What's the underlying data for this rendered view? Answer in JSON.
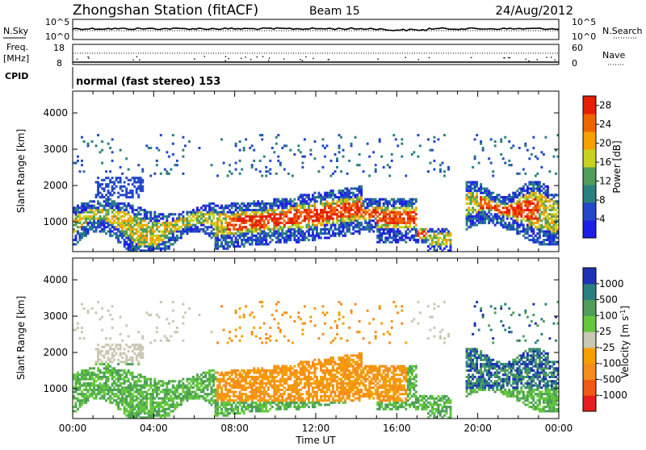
{
  "header": {
    "station": "Zhongshan Station (fitACF)",
    "beam": "Beam 15",
    "date": "24/Aug/2012"
  },
  "strips": {
    "nsky_label": "N.Sky",
    "nsky_ticks": [
      "10^5",
      "10^0"
    ],
    "nsearch_label": "N.Search",
    "freq_label_1": "Freq.",
    "freq_label_2": "[MHz]",
    "freq_ticks": [
      "18",
      "8"
    ],
    "nave_label": "Nave",
    "nave_ticks": [
      "60",
      "0"
    ],
    "cpid_label": "CPID",
    "cpid_text": "normal (fast stereo) 153"
  },
  "colors": {
    "power": [
      "#1e1ee6",
      "#2348c8",
      "#2a7f7f",
      "#4e9e5a",
      "#c8d21e",
      "#f5a000",
      "#f06400",
      "#e61e00"
    ],
    "velocity": [
      "#e61e1e",
      "#f05a14",
      "#f58c1e",
      "#f5a000",
      "#c8c8b4",
      "#64c83c",
      "#4e9e5a",
      "#2a7f7f",
      "#1e32b4"
    ]
  },
  "chart_data": [
    {
      "type": "heatmap",
      "quantity": "Power",
      "xlabel": "Time UT",
      "ylabel": "Slant Range [km]",
      "x_ticks": [
        "00:00",
        "04:00",
        "08:00",
        "12:00",
        "16:00",
        "20:00",
        "00:00"
      ],
      "xlim_hours": [
        0,
        24
      ],
      "ylim_km": [
        180,
        4600
      ],
      "y_ticks": [
        1000,
        2000,
        3000,
        4000
      ],
      "colorbar_label": "Power [dB]",
      "colorbar_ticks": [
        4,
        8,
        12,
        16,
        20,
        24,
        28
      ],
      "colorbar_range": [
        0,
        30
      ]
    },
    {
      "type": "heatmap",
      "quantity": "Velocity",
      "xlabel": "Time UT",
      "ylabel": "Slant Range [km]",
      "x_ticks": [
        "00:00",
        "04:00",
        "08:00",
        "12:00",
        "16:00",
        "20:00",
        "00:00"
      ],
      "xlim_hours": [
        0,
        24
      ],
      "ylim_km": [
        180,
        4600
      ],
      "y_ticks": [
        1000,
        2000,
        3000,
        4000
      ],
      "colorbar_label": "Velocity [m s^-1]",
      "colorbar_ticks": [
        1000,
        500,
        100,
        25,
        -25,
        -100,
        -500,
        -1000
      ]
    }
  ]
}
